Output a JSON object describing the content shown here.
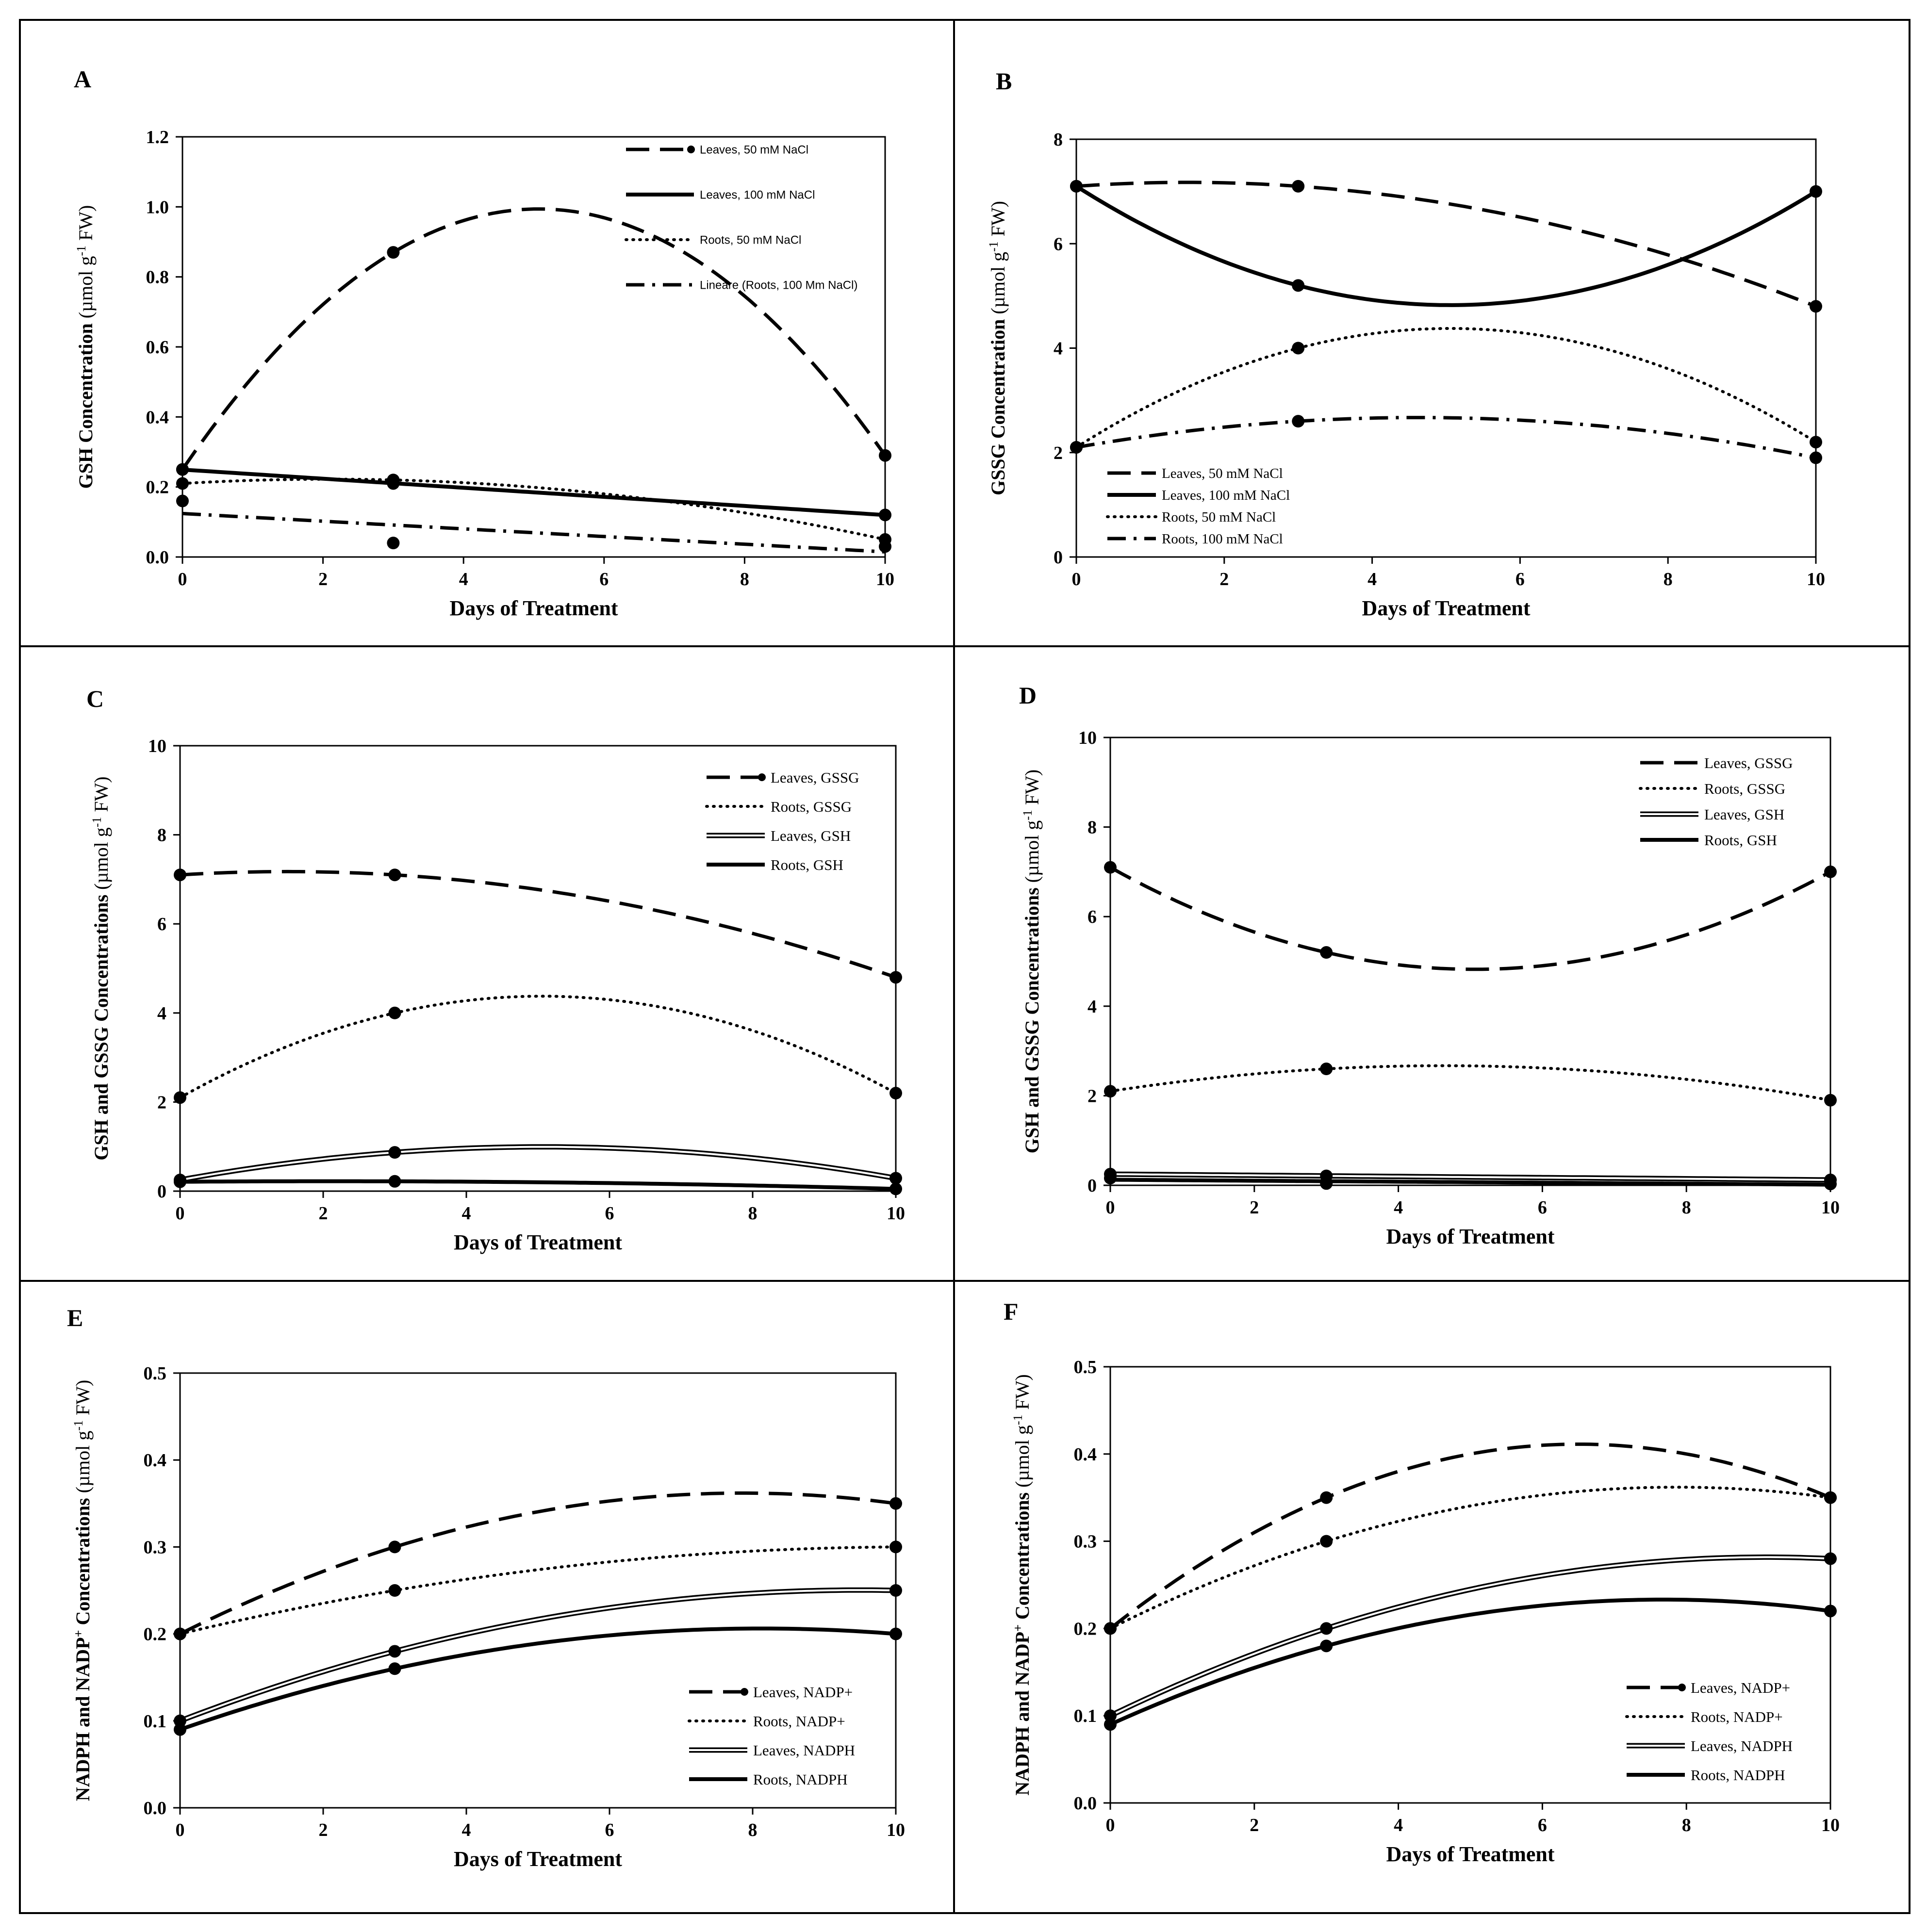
{
  "figure": {
    "line_color": "#000000",
    "background": "#ffffff"
  },
  "chart_data": [
    {
      "id": "A",
      "panel_label": "A",
      "type": "scatter",
      "xlabel": "Days of Treatment",
      "ylabel": {
        "main": "GSH Concentration",
        "unit_pre": "(µmol g",
        "unit_sup": "-1",
        "unit_post": " FW)"
      },
      "xlim": [
        0,
        10
      ],
      "ylim": [
        0,
        1.2
      ],
      "xticks": [
        0,
        2,
        4,
        6,
        8,
        10
      ],
      "xtick_labels": [
        "0",
        "2",
        "4",
        "6",
        "8",
        "10"
      ],
      "yticks": [
        0,
        0.2,
        0.4,
        0.6,
        0.8,
        1.0,
        1.2
      ],
      "ytick_labels": [
        "0.0",
        "0.2",
        "0.4",
        "0.6",
        "0.8",
        "1.0",
        "1.2"
      ],
      "legend": {
        "position": "top-right",
        "font": "sans"
      },
      "series": [
        {
          "name": "Leaves, 50 mM NaCl",
          "legend_marker": true,
          "style": "dash",
          "x": [
            0,
            3,
            10
          ],
          "y": [
            0.25,
            0.87,
            0.29
          ],
          "fit": "quadratic"
        },
        {
          "name": "Leaves, 100 mM NaCl",
          "style": "solid",
          "x": [
            0,
            3,
            10
          ],
          "y": [
            0.25,
            0.21,
            0.12
          ],
          "fit": "linear"
        },
        {
          "name": "Roots, 50 mM NaCl",
          "style": "dot",
          "x": [
            0,
            3,
            10
          ],
          "y": [
            0.21,
            0.22,
            0.05
          ],
          "fit": "quadratic"
        },
        {
          "name": "Lineare (Roots, 100 Mm NaCl)",
          "style": "dashdot",
          "x": [
            0,
            3,
            10
          ],
          "y": [
            0.16,
            0.04,
            0.03
          ],
          "fit": "linear"
        }
      ]
    },
    {
      "id": "B",
      "panel_label": "B",
      "type": "scatter",
      "xlabel": "Days of Treatment",
      "ylabel": {
        "main": "GSSG Concentration",
        "unit_pre": "(µmol g",
        "unit_sup": "-1",
        "unit_post": " FW)"
      },
      "xlim": [
        0,
        10
      ],
      "ylim": [
        0,
        8
      ],
      "xticks": [
        0,
        2,
        4,
        6,
        8,
        10
      ],
      "xtick_labels": [
        "0",
        "2",
        "4",
        "6",
        "8",
        "10"
      ],
      "yticks": [
        0,
        2,
        4,
        6,
        8
      ],
      "ytick_labels": [
        "0",
        "2",
        "4",
        "6",
        "8"
      ],
      "legend": {
        "position": "bottom-left",
        "font": "serif"
      },
      "series": [
        {
          "name": "Leaves, 50 mM NaCl",
          "style": "dash",
          "x": [
            0,
            3,
            10
          ],
          "y": [
            7.1,
            7.1,
            4.8
          ],
          "fit": "quadratic"
        },
        {
          "name": "Leaves, 100 mM NaCl",
          "style": "solid",
          "x": [
            0,
            3,
            10
          ],
          "y": [
            7.1,
            5.2,
            7.0
          ],
          "fit": "quadratic"
        },
        {
          "name": "Roots, 50 mM NaCl",
          "style": "dot",
          "x": [
            0,
            3,
            10
          ],
          "y": [
            2.1,
            4.0,
            2.2
          ],
          "fit": "quadratic"
        },
        {
          "name": "Roots, 100 mM NaCl",
          "style": "dashdot",
          "x": [
            0,
            3,
            10
          ],
          "y": [
            2.1,
            2.6,
            1.9
          ],
          "fit": "quadratic"
        }
      ]
    },
    {
      "id": "C",
      "panel_label": "C",
      "type": "scatter",
      "xlabel": "Days of Treatment",
      "ylabel": {
        "main": "GSH and GSSG Concentrations",
        "unit_pre": "(µmol g",
        "unit_sup": "-1",
        "unit_post": " FW)"
      },
      "xlim": [
        0,
        10
      ],
      "ylim": [
        0,
        10
      ],
      "xticks": [
        0,
        2,
        4,
        6,
        8,
        10
      ],
      "xtick_labels": [
        "0",
        "2",
        "4",
        "6",
        "8",
        "10"
      ],
      "yticks": [
        0,
        2,
        4,
        6,
        8,
        10
      ],
      "ytick_labels": [
        "0",
        "2",
        "4",
        "6",
        "8",
        "10"
      ],
      "legend": {
        "position": "top-right",
        "font": "serif"
      },
      "series": [
        {
          "name": "Leaves, GSSG",
          "legend_marker": true,
          "style": "dash",
          "x": [
            0,
            3,
            10
          ],
          "y": [
            7.1,
            7.1,
            4.8
          ],
          "fit": "quadratic"
        },
        {
          "name": "Roots, GSSG",
          "style": "dot",
          "x": [
            0,
            3,
            10
          ],
          "y": [
            2.1,
            4.0,
            2.2
          ],
          "fit": "quadratic"
        },
        {
          "name": "Leaves, GSH",
          "style": "double",
          "x": [
            0,
            3,
            10
          ],
          "y": [
            0.25,
            0.87,
            0.29
          ],
          "fit": "quadratic"
        },
        {
          "name": "Roots, GSH",
          "style": "solid",
          "x": [
            0,
            3,
            10
          ],
          "y": [
            0.21,
            0.22,
            0.05
          ],
          "fit": "quadratic"
        }
      ]
    },
    {
      "id": "D",
      "panel_label": "D",
      "type": "scatter",
      "xlabel": "Days of Treatment",
      "ylabel": {
        "main": "GSH and GSSG Concentrations",
        "unit_pre": "(µmol g",
        "unit_sup": "-1",
        "unit_post": " FW)"
      },
      "xlim": [
        0,
        10
      ],
      "ylim": [
        0,
        10
      ],
      "xticks": [
        0,
        2,
        4,
        6,
        8,
        10
      ],
      "xtick_labels": [
        "0",
        "2",
        "4",
        "6",
        "8",
        "10"
      ],
      "yticks": [
        0,
        2,
        4,
        6,
        8,
        10
      ],
      "ytick_labels": [
        "0",
        "2",
        "4",
        "6",
        "8",
        "10"
      ],
      "legend": {
        "position": "top-right",
        "font": "serif"
      },
      "series": [
        {
          "name": "Leaves, GSSG",
          "style": "dash",
          "x": [
            0,
            3,
            10
          ],
          "y": [
            7.1,
            5.2,
            7.0
          ],
          "fit": "quadratic"
        },
        {
          "name": "Roots, GSSG",
          "style": "dot",
          "x": [
            0,
            3,
            10
          ],
          "y": [
            2.1,
            2.6,
            1.9
          ],
          "fit": "quadratic"
        },
        {
          "name": "Leaves, GSH",
          "style": "double",
          "x": [
            0,
            3,
            10
          ],
          "y": [
            0.25,
            0.21,
            0.12
          ],
          "fit": "linear"
        },
        {
          "name": "Roots, GSH",
          "style": "solid",
          "x": [
            0,
            3,
            10
          ],
          "y": [
            0.16,
            0.04,
            0.03
          ],
          "fit": "linear"
        }
      ]
    },
    {
      "id": "E",
      "panel_label": "E",
      "type": "scatter",
      "xlabel": "Days of Treatment",
      "ylabel": {
        "main": "NADPH  and NADP",
        "main_sup": "+",
        "main_post": " Concentrations",
        "unit_pre": "  (µmol  g",
        "unit_sup": "-1",
        "unit_post": " FW)"
      },
      "xlim": [
        0,
        10
      ],
      "ylim": [
        0,
        0.5
      ],
      "xticks": [
        0,
        2,
        4,
        6,
        8,
        10
      ],
      "xtick_labels": [
        "0",
        "2",
        "4",
        "6",
        "8",
        "10"
      ],
      "yticks": [
        0,
        0.1,
        0.2,
        0.3,
        0.4,
        0.5
      ],
      "ytick_labels": [
        "0.0",
        "0.1",
        "0.2",
        "0.3",
        "0.4",
        "0.5"
      ],
      "legend": {
        "position": "bottom-right",
        "font": "serif"
      },
      "series": [
        {
          "name": "Leaves, NADP+",
          "legend_marker": true,
          "style": "dash",
          "x": [
            0,
            3,
            10
          ],
          "y": [
            0.2,
            0.3,
            0.35
          ],
          "fit": "quadratic"
        },
        {
          "name": "Roots, NADP+",
          "style": "dot",
          "x": [
            0,
            3,
            10
          ],
          "y": [
            0.2,
            0.25,
            0.3
          ],
          "fit": "quadratic"
        },
        {
          "name": "Leaves, NADPH",
          "style": "double",
          "x": [
            0,
            3,
            10
          ],
          "y": [
            0.1,
            0.18,
            0.25
          ],
          "fit": "quadratic"
        },
        {
          "name": "Roots, NADPH",
          "style": "solid",
          "x": [
            0,
            3,
            10
          ],
          "y": [
            0.09,
            0.16,
            0.2
          ],
          "fit": "quadratic"
        }
      ]
    },
    {
      "id": "F",
      "panel_label": "F",
      "type": "scatter",
      "xlabel": "Days of Treatment",
      "ylabel": {
        "main": "NADPH  and NADP",
        "main_sup": "+",
        "main_post": " Concentrations",
        "unit_pre": "  (µmol  g",
        "unit_sup": "-1",
        "unit_post": " FW)"
      },
      "xlim": [
        0,
        10
      ],
      "ylim": [
        0,
        0.5
      ],
      "xticks": [
        0,
        2,
        4,
        6,
        8,
        10
      ],
      "xtick_labels": [
        "0",
        "2",
        "4",
        "6",
        "8",
        "10"
      ],
      "yticks": [
        0,
        0.1,
        0.2,
        0.3,
        0.4,
        0.5
      ],
      "ytick_labels": [
        "0.0",
        "0.1",
        "0.2",
        "0.3",
        "0.4",
        "0.5"
      ],
      "legend": {
        "position": "bottom-right",
        "font": "serif"
      },
      "series": [
        {
          "name": "Leaves, NADP+",
          "legend_marker": true,
          "style": "dash",
          "x": [
            0,
            3,
            10
          ],
          "y": [
            0.2,
            0.35,
            0.35
          ],
          "fit": "quadratic"
        },
        {
          "name": "Roots, NADP+",
          "style": "dot",
          "x": [
            0,
            3,
            10
          ],
          "y": [
            0.2,
            0.3,
            0.35
          ],
          "fit": "quadratic"
        },
        {
          "name": "Leaves, NADPH",
          "style": "double",
          "x": [
            0,
            3,
            10
          ],
          "y": [
            0.1,
            0.2,
            0.28
          ],
          "fit": "quadratic"
        },
        {
          "name": "Roots, NADPH",
          "style": "solid",
          "x": [
            0,
            3,
            10
          ],
          "y": [
            0.09,
            0.18,
            0.22
          ],
          "fit": "quadratic"
        }
      ]
    }
  ]
}
